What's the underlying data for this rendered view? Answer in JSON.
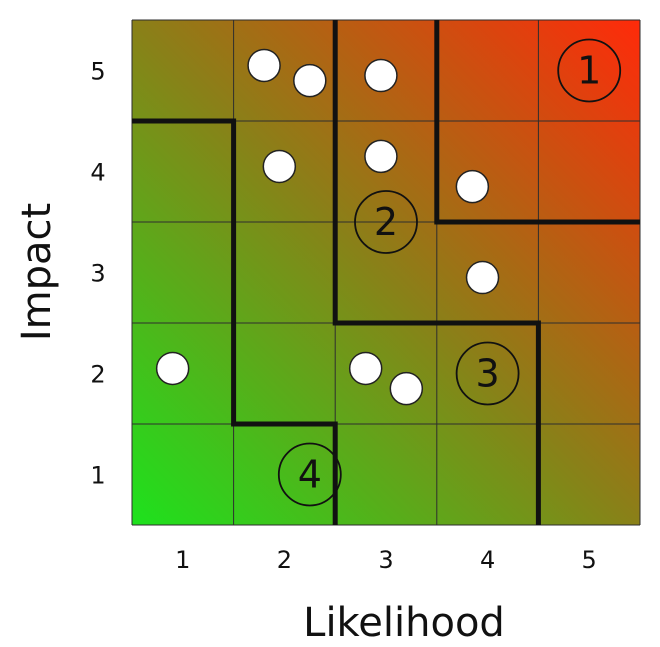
{
  "chart_data": {
    "type": "heatmap",
    "xlabel": "Likelihood",
    "ylabel": "Impact",
    "x_ticks": [
      "1",
      "2",
      "3",
      "4",
      "5"
    ],
    "y_ticks": [
      "1",
      "2",
      "3",
      "4",
      "5"
    ],
    "xlim": [
      0.5,
      5.5
    ],
    "ylim": [
      0.5,
      5.5
    ],
    "grid": true,
    "colors": {
      "low": "#1de21d",
      "mid": "#8a8018",
      "high": "#ff2a0a",
      "grid_line": "#2e2e2e",
      "boundary": "#111111",
      "point_fill": "#ffffff"
    },
    "zones": [
      {
        "label": "1",
        "x": 5.0,
        "y": 5.0
      },
      {
        "label": "2",
        "x": 3.0,
        "y": 3.5
      },
      {
        "label": "3",
        "x": 4.0,
        "y": 2.0
      },
      {
        "label": "4",
        "x": 2.25,
        "y": 1.0
      }
    ],
    "boundaries": [
      [
        [
          0.5,
          4.5
        ],
        [
          1.5,
          4.5
        ],
        [
          1.5,
          1.5
        ],
        [
          2.5,
          1.5
        ],
        [
          2.5,
          0.5
        ]
      ],
      [
        [
          2.5,
          5.5
        ],
        [
          2.5,
          2.5
        ],
        [
          4.5,
          2.5
        ],
        [
          4.5,
          0.5
        ]
      ],
      [
        [
          3.5,
          5.5
        ],
        [
          3.5,
          3.5
        ],
        [
          5.5,
          3.5
        ]
      ]
    ],
    "points": [
      {
        "x": 1.8,
        "y": 5.05
      },
      {
        "x": 2.25,
        "y": 4.9
      },
      {
        "x": 2.95,
        "y": 4.95
      },
      {
        "x": 1.95,
        "y": 4.05
      },
      {
        "x": 2.95,
        "y": 4.15
      },
      {
        "x": 3.85,
        "y": 3.85
      },
      {
        "x": 3.95,
        "y": 2.95
      },
      {
        "x": 0.9,
        "y": 2.05
      },
      {
        "x": 2.8,
        "y": 2.05
      },
      {
        "x": 3.2,
        "y": 1.85
      }
    ]
  }
}
